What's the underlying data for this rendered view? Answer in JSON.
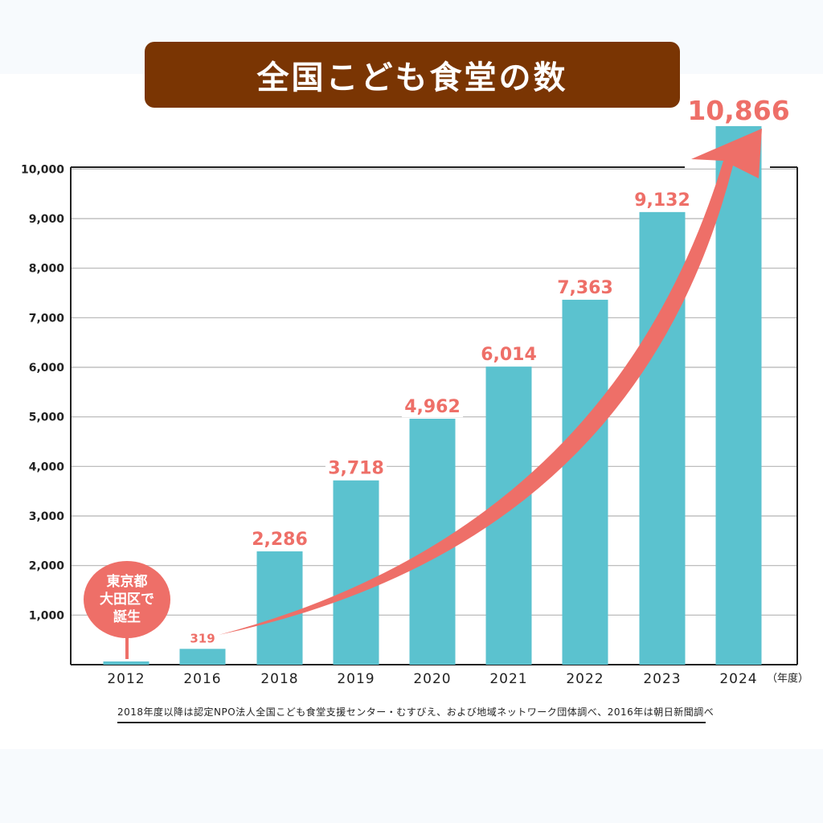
{
  "title": "全国こども食堂の数",
  "source_note": "2018年度以降は認定NPO法人全国こども食堂支援センター・むすびえ、および地域ネットワーク団体調べ、2016年は朝日新聞調べ",
  "annotation": {
    "lines": [
      "東京都",
      "大田区で",
      "誕生"
    ]
  },
  "colors": {
    "bar": "#5bc2cf",
    "accent": "#ee6f68",
    "banner": "#7a3503",
    "grid": "#b5b5b5"
  },
  "chart_data": {
    "type": "bar",
    "title": "全国こども食堂の数",
    "xlabel": "",
    "ylabel": "",
    "x_unit_label": "（年度）",
    "categories": [
      "2012",
      "2016",
      "2018",
      "2019",
      "2020",
      "2021",
      "2022",
      "2023",
      "2024"
    ],
    "values": [
      1,
      319,
      2286,
      3718,
      4962,
      6014,
      7363,
      9132,
      10866
    ],
    "value_labels": [
      "",
      "319",
      "2,286",
      "3,718",
      "4,962",
      "6,014",
      "7,363",
      "9,132",
      "10,866"
    ],
    "yticks": [
      1000,
      2000,
      3000,
      4000,
      5000,
      6000,
      7000,
      8000,
      9000,
      10000
    ],
    "ytick_labels": [
      "1,000",
      "2,000",
      "3,000",
      "4,000",
      "5,000",
      "6,000",
      "7,000",
      "8,000",
      "9,000",
      "10,000"
    ],
    "ylim": [
      0,
      10000
    ],
    "grid": true,
    "trend_arrow": true
  }
}
